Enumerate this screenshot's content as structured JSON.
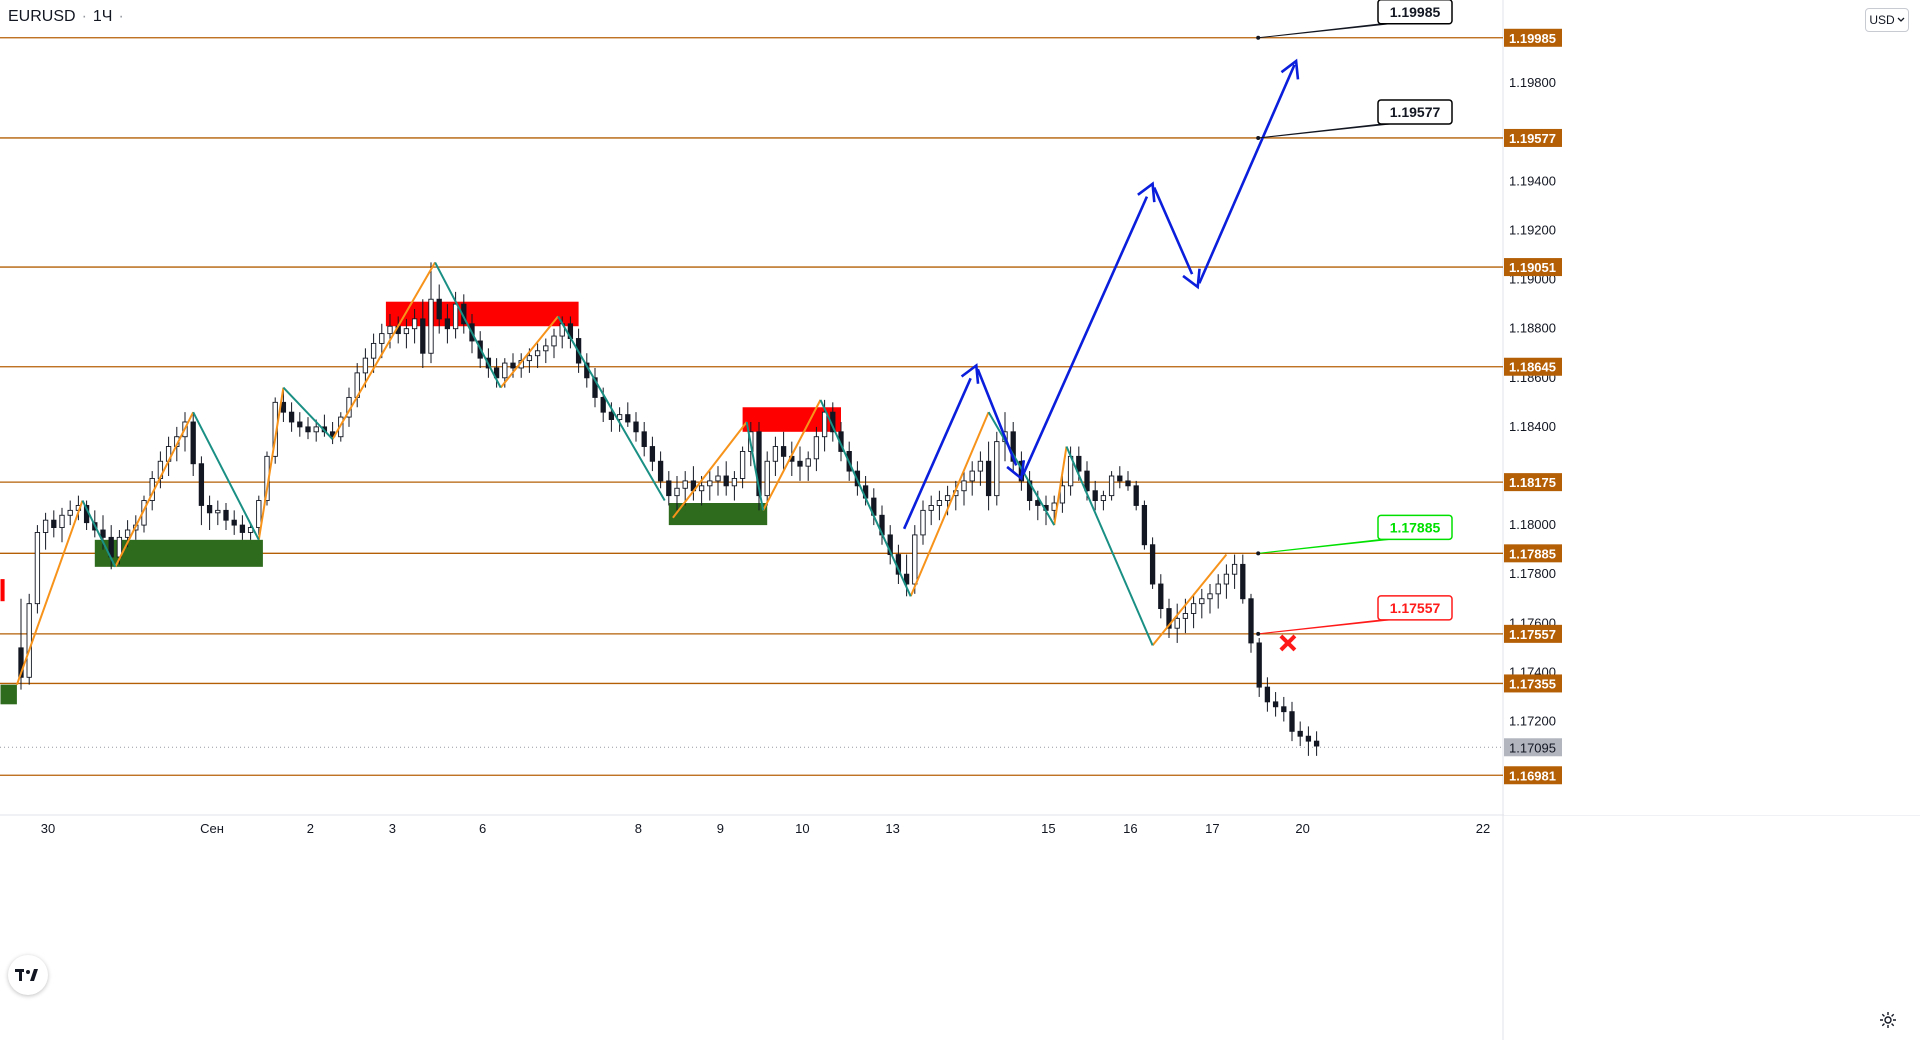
{
  "header": {
    "symbol": "EURUSD",
    "timeframe": "1Ч"
  },
  "currency_selector": {
    "label": "USD",
    "icon": "chevron-down-icon"
  },
  "logo": {
    "icon": "tradingview-logo"
  },
  "settings": {
    "icon": "gear-icon"
  },
  "colors": {
    "level_line": "#b45f06",
    "level_label_bg": "#b45f06",
    "bull_wave": "#f7931a",
    "bear_wave": "#1a8f84",
    "projection": "#0a1edc",
    "supply_zone": "#ff0000",
    "demand_zone": "#2e6b1d",
    "target_label_border": "#000000",
    "buy_label": "#00e000",
    "sell_label": "#ff1a1a",
    "last_price_bg": "#b2b5be"
  },
  "chart_data": {
    "type": "candlestick",
    "symbol": "EURUSD",
    "interval": "1Ч",
    "y_axis": {
      "ticks": [
        "1.19800",
        "1.19400",
        "1.19200",
        "1.19000",
        "1.18800",
        "1.18600",
        "1.18400",
        "1.18000",
        "1.17800",
        "1.17600",
        "1.17400",
        "1.17200"
      ],
      "range": [
        1.1684,
        1.2009
      ]
    },
    "x_axis": {
      "ticks": [
        {
          "label": "30",
          "bar": 0
        },
        {
          "label": "Сен",
          "bar": 20
        },
        {
          "label": "2",
          "bar": 32
        },
        {
          "label": "3",
          "bar": 42
        },
        {
          "label": "6",
          "bar": 53
        },
        {
          "label": "8",
          "bar": 72
        },
        {
          "label": "9",
          "bar": 82
        },
        {
          "label": "10",
          "bar": 92
        },
        {
          "label": "13",
          "bar": 103
        },
        {
          "label": "15",
          "bar": 122
        },
        {
          "label": "16",
          "bar": 132
        },
        {
          "label": "17",
          "bar": 142
        },
        {
          "label": "20",
          "bar": 153
        },
        {
          "label": "22",
          "bar": 172
        }
      ]
    },
    "levels": [
      {
        "label": "1.19985",
        "value": 1.19985
      },
      {
        "label": "1.19577",
        "value": 1.19577
      },
      {
        "label": "1.19051",
        "value": 1.19051
      },
      {
        "label": "1.18645",
        "value": 1.18645
      },
      {
        "label": "1.18175",
        "value": 1.18175
      },
      {
        "label": "1.17885",
        "value": 1.17885
      },
      {
        "label": "1.17557",
        "value": 1.17557
      },
      {
        "label": "1.17355",
        "value": 1.17355
      },
      {
        "label": "1.16981",
        "value": 1.16981
      }
    ],
    "last_price": {
      "label": "1.17095",
      "value": 1.17095
    },
    "target_labels": [
      {
        "label": "1.19985",
        "value": 1.19985,
        "bar": 151,
        "style": "target"
      },
      {
        "label": "1.19577",
        "value": 1.19577,
        "bar": 151,
        "style": "target"
      },
      {
        "label": "1.17885",
        "value": 1.17885,
        "bar": 151,
        "style": "buy"
      },
      {
        "label": "1.17557",
        "value": 1.17557,
        "bar": 151,
        "style": "sell"
      }
    ],
    "supply_zones": [
      {
        "from_bar": 44.5,
        "to_bar": 68,
        "top": 1.1891,
        "bottom": 1.1881
      },
      {
        "from_bar": 88,
        "to_bar": 100,
        "top": 1.1848,
        "bottom": 1.1838
      },
      {
        "from_bar": -2.5,
        "to_bar": -2,
        "top": 1.1778,
        "bottom": 1.1769
      }
    ],
    "demand_zones": [
      {
        "from_bar": 9,
        "to_bar": 29.5,
        "top": 1.1794,
        "bottom": 1.1783
      },
      {
        "from_bar": 79,
        "to_bar": 91,
        "top": 1.1809,
        "bottom": 1.18
      },
      {
        "from_bar": -2.5,
        "to_bar": -0.5,
        "top": 1.1735,
        "bottom": 1.1727
      }
    ],
    "bull_waves": [
      [
        [
          -0.5,
          1.1735
        ],
        [
          7.5,
          1.181
        ]
      ],
      [
        [
          11.5,
          1.1783
        ],
        [
          21,
          1.1846
        ]
      ],
      [
        [
          29,
          1.1794
        ],
        [
          32,
          1.1856
        ]
      ],
      [
        [
          38,
          1.1835
        ],
        [
          50.5,
          1.1907
        ]
      ],
      [
        [
          58.5,
          1.1856
        ],
        [
          65.5,
          1.1885
        ]
      ],
      [
        [
          79.5,
          1.1803
        ],
        [
          88.5,
          1.1842
        ]
      ],
      [
        [
          90.5,
          1.1806
        ],
        [
          97.5,
          1.1851
        ]
      ],
      [
        [
          108.5,
          1.1771
        ],
        [
          118,
          1.1846
        ]
      ],
      [
        [
          126,
          1.18
        ],
        [
          127.5,
          1.1832
        ]
      ],
      [
        [
          138,
          1.1751
        ],
        [
          147,
          1.1788
        ]
      ]
    ],
    "bear_waves": [
      [
        [
          7.5,
          1.181
        ],
        [
          11.5,
          1.1783
        ]
      ],
      [
        [
          21,
          1.1846
        ],
        [
          29,
          1.1794
        ]
      ],
      [
        [
          32,
          1.1856
        ],
        [
          38,
          1.1835
        ]
      ],
      [
        [
          50.5,
          1.1907
        ],
        [
          58.5,
          1.1856
        ]
      ],
      [
        [
          65.5,
          1.1885
        ],
        [
          78.5,
          1.181
        ]
      ],
      [
        [
          88.5,
          1.1842
        ],
        [
          90.5,
          1.1806
        ]
      ],
      [
        [
          97.5,
          1.1851
        ],
        [
          108.5,
          1.1771
        ]
      ],
      [
        [
          118,
          1.1846
        ],
        [
          126,
          1.18
        ]
      ],
      [
        [
          127.5,
          1.1832
        ],
        [
          138,
          1.1751
        ]
      ]
    ],
    "projection_path": [
      [
        107.5,
        1.1797
      ],
      [
        116.5,
        1.1865
      ],
      [
        122,
        1.1819
      ],
      [
        138,
        1.1939
      ],
      [
        143.5,
        1.1897
      ],
      [
        155.5,
        1.1989
      ]
    ],
    "sell_marker": {
      "bar": 154.5,
      "value": 1.1752
    },
    "ohlc_bars": [
      [
        1.175,
        1.177,
        1.1733,
        1.1738
      ],
      [
        1.1738,
        1.1772,
        1.1735,
        1.1768
      ],
      [
        1.1768,
        1.18,
        1.1764,
        1.1797
      ],
      [
        1.1797,
        1.1805,
        1.179,
        1.1802
      ],
      [
        1.1802,
        1.1806,
        1.1795,
        1.1799
      ],
      [
        1.1799,
        1.1807,
        1.1793,
        1.1804
      ],
      [
        1.1804,
        1.181,
        1.18,
        1.1806
      ],
      [
        1.1806,
        1.1812,
        1.1802,
        1.1808
      ],
      [
        1.1808,
        1.181,
        1.1798,
        1.1801
      ],
      [
        1.1801,
        1.1806,
        1.1795,
        1.1798
      ],
      [
        1.1798,
        1.1804,
        1.179,
        1.1795
      ],
      [
        1.1795,
        1.18,
        1.1782,
        1.1787
      ],
      [
        1.1787,
        1.1798,
        1.1784,
        1.1795
      ],
      [
        1.1795,
        1.1802,
        1.1791,
        1.1798
      ],
      [
        1.1798,
        1.1804,
        1.1794,
        1.18
      ],
      [
        1.18,
        1.1812,
        1.1797,
        1.181
      ],
      [
        1.181,
        1.1822,
        1.1806,
        1.1819
      ],
      [
        1.1819,
        1.183,
        1.1815,
        1.1826
      ],
      [
        1.1826,
        1.1836,
        1.182,
        1.1832
      ],
      [
        1.1832,
        1.184,
        1.1826,
        1.1836
      ],
      [
        1.1836,
        1.1846,
        1.183,
        1.1842
      ],
      [
        1.1842,
        1.1846,
        1.182,
        1.1825
      ],
      [
        1.1825,
        1.1828,
        1.18,
        1.1808
      ],
      [
        1.1808,
        1.1812,
        1.1798,
        1.1805
      ],
      [
        1.1805,
        1.181,
        1.18,
        1.1806
      ],
      [
        1.1806,
        1.1809,
        1.1798,
        1.1802
      ],
      [
        1.1802,
        1.1806,
        1.1796,
        1.18
      ],
      [
        1.18,
        1.1804,
        1.1794,
        1.1797
      ],
      [
        1.1797,
        1.1801,
        1.1794,
        1.1799
      ],
      [
        1.1799,
        1.1812,
        1.1796,
        1.181
      ],
      [
        1.181,
        1.183,
        1.1808,
        1.1828
      ],
      [
        1.1828,
        1.1852,
        1.1825,
        1.185
      ],
      [
        1.185,
        1.1856,
        1.1842,
        1.1846
      ],
      [
        1.1846,
        1.185,
        1.1838,
        1.1842
      ],
      [
        1.1842,
        1.1846,
        1.1836,
        1.184
      ],
      [
        1.184,
        1.1844,
        1.1835,
        1.1838
      ],
      [
        1.1838,
        1.1843,
        1.1834,
        1.184
      ],
      [
        1.184,
        1.1845,
        1.1836,
        1.1838
      ],
      [
        1.1838,
        1.1842,
        1.1833,
        1.1836
      ],
      [
        1.1836,
        1.1846,
        1.1834,
        1.1844
      ],
      [
        1.1844,
        1.1856,
        1.184,
        1.1852
      ],
      [
        1.1852,
        1.1866,
        1.1848,
        1.1862
      ],
      [
        1.1862,
        1.1872,
        1.1856,
        1.1868
      ],
      [
        1.1868,
        1.1878,
        1.1862,
        1.1874
      ],
      [
        1.1874,
        1.1882,
        1.1868,
        1.1878
      ],
      [
        1.1878,
        1.1886,
        1.1872,
        1.1881
      ],
      [
        1.1881,
        1.1885,
        1.1874,
        1.1878
      ],
      [
        1.1878,
        1.1884,
        1.1872,
        1.188
      ],
      [
        1.188,
        1.1888,
        1.1874,
        1.1884
      ],
      [
        1.1884,
        1.1892,
        1.1864,
        1.187
      ],
      [
        1.187,
        1.1907,
        1.1866,
        1.1892
      ],
      [
        1.1892,
        1.1898,
        1.1878,
        1.1884
      ],
      [
        1.1884,
        1.189,
        1.1874,
        1.188
      ],
      [
        1.188,
        1.1895,
        1.1876,
        1.189
      ],
      [
        1.189,
        1.1894,
        1.1878,
        1.1882
      ],
      [
        1.1882,
        1.1886,
        1.187,
        1.1875
      ],
      [
        1.1875,
        1.1879,
        1.1864,
        1.1868
      ],
      [
        1.1868,
        1.1872,
        1.186,
        1.1864
      ],
      [
        1.1864,
        1.1868,
        1.1856,
        1.186
      ],
      [
        1.186,
        1.1868,
        1.1856,
        1.1866
      ],
      [
        1.1866,
        1.187,
        1.186,
        1.1864
      ],
      [
        1.1864,
        1.187,
        1.186,
        1.1867
      ],
      [
        1.1867,
        1.1872,
        1.1862,
        1.1869
      ],
      [
        1.1869,
        1.1874,
        1.1864,
        1.1871
      ],
      [
        1.1871,
        1.1876,
        1.1866,
        1.1873
      ],
      [
        1.1873,
        1.188,
        1.1868,
        1.1877
      ],
      [
        1.1877,
        1.1885,
        1.1872,
        1.1882
      ],
      [
        1.1882,
        1.1885,
        1.1872,
        1.1876
      ],
      [
        1.1876,
        1.188,
        1.1862,
        1.1866
      ],
      [
        1.1866,
        1.187,
        1.1856,
        1.186
      ],
      [
        1.186,
        1.1864,
        1.1848,
        1.1852
      ],
      [
        1.1852,
        1.1856,
        1.1842,
        1.1846
      ],
      [
        1.1846,
        1.185,
        1.1838,
        1.1843
      ],
      [
        1.1843,
        1.1848,
        1.1838,
        1.1845
      ],
      [
        1.1845,
        1.185,
        1.184,
        1.1842
      ],
      [
        1.1842,
        1.1846,
        1.1834,
        1.1838
      ],
      [
        1.1838,
        1.1842,
        1.1828,
        1.1832
      ],
      [
        1.1832,
        1.1836,
        1.1822,
        1.1826
      ],
      [
        1.1826,
        1.183,
        1.1815,
        1.1818
      ],
      [
        1.1818,
        1.1822,
        1.1808,
        1.1812
      ],
      [
        1.1812,
        1.182,
        1.1806,
        1.1815
      ],
      [
        1.1815,
        1.1822,
        1.1808,
        1.1818
      ],
      [
        1.1818,
        1.1824,
        1.181,
        1.1814
      ],
      [
        1.1814,
        1.182,
        1.1808,
        1.1816
      ],
      [
        1.1816,
        1.1822,
        1.181,
        1.1818
      ],
      [
        1.1818,
        1.1824,
        1.1812,
        1.182
      ],
      [
        1.182,
        1.1826,
        1.1812,
        1.1816
      ],
      [
        1.1816,
        1.1822,
        1.181,
        1.1819
      ],
      [
        1.1819,
        1.1832,
        1.1815,
        1.183
      ],
      [
        1.183,
        1.1842,
        1.1824,
        1.1838
      ],
      [
        1.1838,
        1.1842,
        1.1806,
        1.1812
      ],
      [
        1.1812,
        1.183,
        1.1808,
        1.1826
      ],
      [
        1.1826,
        1.1836,
        1.182,
        1.1832
      ],
      [
        1.1832,
        1.1838,
        1.1822,
        1.1828
      ],
      [
        1.1828,
        1.1834,
        1.182,
        1.1826
      ],
      [
        1.1826,
        1.1832,
        1.1818,
        1.1824
      ],
      [
        1.1824,
        1.183,
        1.1818,
        1.1827
      ],
      [
        1.1827,
        1.184,
        1.1822,
        1.1836
      ],
      [
        1.1836,
        1.1851,
        1.183,
        1.1846
      ],
      [
        1.1846,
        1.185,
        1.1834,
        1.1838
      ],
      [
        1.1838,
        1.1842,
        1.1826,
        1.183
      ],
      [
        1.183,
        1.1834,
        1.1818,
        1.1822
      ],
      [
        1.1822,
        1.1826,
        1.1812,
        1.1816
      ],
      [
        1.1816,
        1.182,
        1.1808,
        1.1811
      ],
      [
        1.1811,
        1.1815,
        1.18,
        1.1804
      ],
      [
        1.1804,
        1.1808,
        1.1792,
        1.1796
      ],
      [
        1.1796,
        1.18,
        1.1784,
        1.1788
      ],
      [
        1.1788,
        1.1792,
        1.1776,
        1.178
      ],
      [
        1.178,
        1.1788,
        1.1771,
        1.1776
      ],
      [
        1.1776,
        1.18,
        1.1772,
        1.1796
      ],
      [
        1.1796,
        1.181,
        1.1792,
        1.1806
      ],
      [
        1.1806,
        1.1812,
        1.18,
        1.1808
      ],
      [
        1.1808,
        1.1814,
        1.1802,
        1.181
      ],
      [
        1.181,
        1.1816,
        1.1804,
        1.1812
      ],
      [
        1.1812,
        1.1818,
        1.1806,
        1.1814
      ],
      [
        1.1814,
        1.1822,
        1.1808,
        1.1818
      ],
      [
        1.1818,
        1.1826,
        1.1812,
        1.1822
      ],
      [
        1.1822,
        1.183,
        1.1816,
        1.1826
      ],
      [
        1.1826,
        1.1834,
        1.1806,
        1.1812
      ],
      [
        1.1812,
        1.1838,
        1.1808,
        1.1834
      ],
      [
        1.1834,
        1.1846,
        1.1826,
        1.1838
      ],
      [
        1.1838,
        1.1842,
        1.1822,
        1.1826
      ],
      [
        1.1826,
        1.183,
        1.1814,
        1.1818
      ],
      [
        1.1818,
        1.1822,
        1.1806,
        1.181
      ],
      [
        1.181,
        1.1814,
        1.1802,
        1.1808
      ],
      [
        1.1808,
        1.1812,
        1.18,
        1.1806
      ],
      [
        1.1806,
        1.1812,
        1.1802,
        1.1809
      ],
      [
        1.1809,
        1.182,
        1.1805,
        1.1816
      ],
      [
        1.1816,
        1.1832,
        1.1812,
        1.1828
      ],
      [
        1.1828,
        1.1832,
        1.1818,
        1.1822
      ],
      [
        1.1822,
        1.1826,
        1.181,
        1.1814
      ],
      [
        1.1814,
        1.1818,
        1.1806,
        1.181
      ],
      [
        1.181,
        1.1814,
        1.1806,
        1.1812
      ],
      [
        1.1812,
        1.1822,
        1.181,
        1.182
      ],
      [
        1.182,
        1.1824,
        1.1815,
        1.1818
      ],
      [
        1.1818,
        1.1822,
        1.1814,
        1.1816
      ],
      [
        1.1816,
        1.1818,
        1.1806,
        1.1808
      ],
      [
        1.1808,
        1.181,
        1.179,
        1.1792
      ],
      [
        1.1792,
        1.1795,
        1.1774,
        1.1776
      ],
      [
        1.1776,
        1.178,
        1.1762,
        1.1766
      ],
      [
        1.1766,
        1.177,
        1.1754,
        1.1758
      ],
      [
        1.1758,
        1.1768,
        1.1752,
        1.1762
      ],
      [
        1.1762,
        1.177,
        1.1756,
        1.1764
      ],
      [
        1.1764,
        1.1772,
        1.1758,
        1.1768
      ],
      [
        1.1768,
        1.1774,
        1.1762,
        1.177
      ],
      [
        1.177,
        1.1776,
        1.1764,
        1.1772
      ],
      [
        1.1772,
        1.178,
        1.1766,
        1.1776
      ],
      [
        1.1776,
        1.1784,
        1.177,
        1.178
      ],
      [
        1.178,
        1.1788,
        1.1774,
        1.1784
      ],
      [
        1.1784,
        1.1788,
        1.1768,
        1.177
      ],
      [
        1.177,
        1.1772,
        1.1748,
        1.1752
      ],
      [
        1.1752,
        1.1754,
        1.173,
        1.1734
      ],
      [
        1.1734,
        1.1738,
        1.1724,
        1.1728
      ],
      [
        1.1728,
        1.1732,
        1.1722,
        1.1726
      ],
      [
        1.1726,
        1.173,
        1.172,
        1.1724
      ],
      [
        1.1724,
        1.1728,
        1.1712,
        1.1716
      ],
      [
        1.1716,
        1.172,
        1.171,
        1.1714
      ],
      [
        1.1714,
        1.1718,
        1.1706,
        1.1712
      ],
      [
        1.1712,
        1.1716,
        1.1706,
        1.171
      ]
    ]
  }
}
